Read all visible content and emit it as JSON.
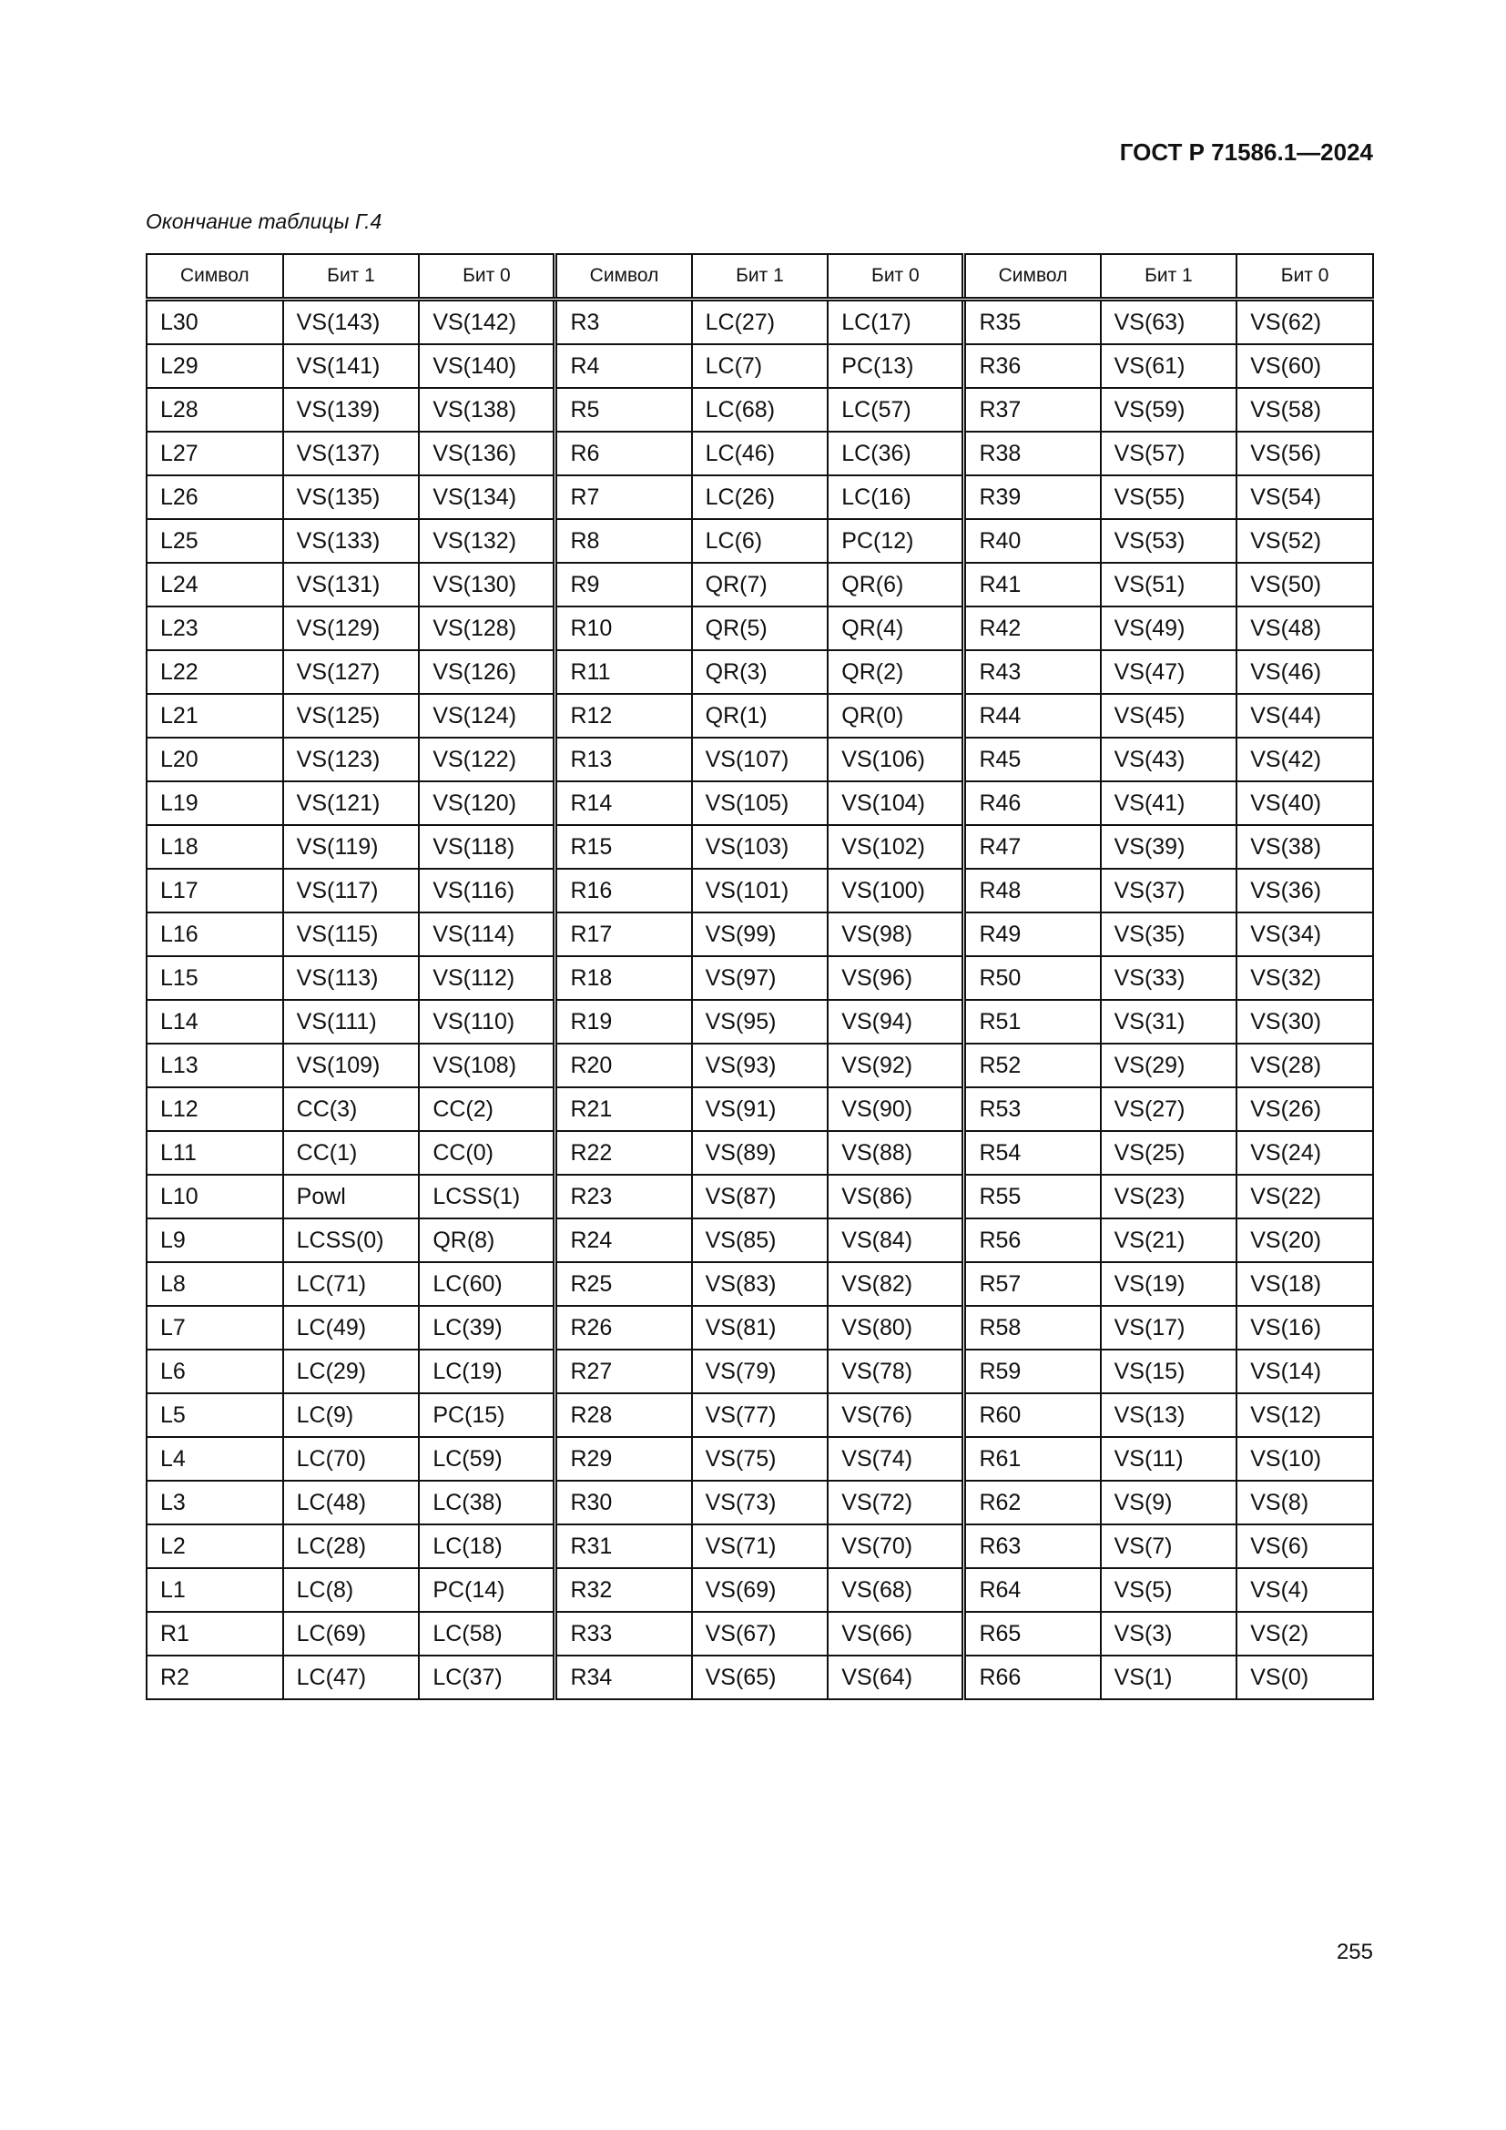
{
  "header": {
    "doc_code": "ГОСТ Р 71586.1—2024"
  },
  "caption": "Окончание таблицы Г.4",
  "table": {
    "columns": [
      "Символ",
      "Бит 1",
      "Бит 0",
      "Символ",
      "Бит 1",
      "Бит 0",
      "Символ",
      "Бит 1",
      "Бит 0"
    ],
    "rows": [
      [
        "L30",
        "VS(143)",
        "VS(142)",
        "R3",
        "LC(27)",
        "LC(17)",
        "R35",
        "VS(63)",
        "VS(62)"
      ],
      [
        "L29",
        "VS(141)",
        "VS(140)",
        "R4",
        "LC(7)",
        "PC(13)",
        "R36",
        "VS(61)",
        "VS(60)"
      ],
      [
        "L28",
        "VS(139)",
        "VS(138)",
        "R5",
        "LC(68)",
        "LC(57)",
        "R37",
        "VS(59)",
        "VS(58)"
      ],
      [
        "L27",
        "VS(137)",
        "VS(136)",
        "R6",
        "LC(46)",
        "LC(36)",
        "R38",
        "VS(57)",
        "VS(56)"
      ],
      [
        "L26",
        "VS(135)",
        "VS(134)",
        "R7",
        "LC(26)",
        "LC(16)",
        "R39",
        "VS(55)",
        "VS(54)"
      ],
      [
        "L25",
        "VS(133)",
        "VS(132)",
        "R8",
        "LC(6)",
        "PC(12)",
        "R40",
        "VS(53)",
        "VS(52)"
      ],
      [
        "L24",
        "VS(131)",
        "VS(130)",
        "R9",
        "QR(7)",
        "QR(6)",
        "R41",
        "VS(51)",
        "VS(50)"
      ],
      [
        "L23",
        "VS(129)",
        "VS(128)",
        "R10",
        "QR(5)",
        "QR(4)",
        "R42",
        "VS(49)",
        "VS(48)"
      ],
      [
        "L22",
        "VS(127)",
        "VS(126)",
        "R11",
        "QR(3)",
        "QR(2)",
        "R43",
        "VS(47)",
        "VS(46)"
      ],
      [
        "L21",
        "VS(125)",
        "VS(124)",
        "R12",
        "QR(1)",
        "QR(0)",
        "R44",
        "VS(45)",
        "VS(44)"
      ],
      [
        "L20",
        "VS(123)",
        "VS(122)",
        "R13",
        "VS(107)",
        "VS(106)",
        "R45",
        "VS(43)",
        "VS(42)"
      ],
      [
        "L19",
        "VS(121)",
        "VS(120)",
        "R14",
        "VS(105)",
        "VS(104)",
        "R46",
        "VS(41)",
        "VS(40)"
      ],
      [
        "L18",
        "VS(119)",
        "VS(118)",
        "R15",
        "VS(103)",
        "VS(102)",
        "R47",
        "VS(39)",
        "VS(38)"
      ],
      [
        "L17",
        "VS(117)",
        "VS(116)",
        "R16",
        "VS(101)",
        "VS(100)",
        "R48",
        "VS(37)",
        "VS(36)"
      ],
      [
        "L16",
        "VS(115)",
        "VS(114)",
        "R17",
        "VS(99)",
        "VS(98)",
        "R49",
        "VS(35)",
        "VS(34)"
      ],
      [
        "L15",
        "VS(113)",
        "VS(112)",
        "R18",
        "VS(97)",
        "VS(96)",
        "R50",
        "VS(33)",
        "VS(32)"
      ],
      [
        "L14",
        "VS(111)",
        "VS(110)",
        "R19",
        "VS(95)",
        "VS(94)",
        "R51",
        "VS(31)",
        "VS(30)"
      ],
      [
        "L13",
        "VS(109)",
        "VS(108)",
        "R20",
        "VS(93)",
        "VS(92)",
        "R52",
        "VS(29)",
        "VS(28)"
      ],
      [
        "L12",
        "CC(3)",
        "CC(2)",
        "R21",
        "VS(91)",
        "VS(90)",
        "R53",
        "VS(27)",
        "VS(26)"
      ],
      [
        "L11",
        "CC(1)",
        "CC(0)",
        "R22",
        "VS(89)",
        "VS(88)",
        "R54",
        "VS(25)",
        "VS(24)"
      ],
      [
        "L10",
        "Powl",
        "LCSS(1)",
        "R23",
        "VS(87)",
        "VS(86)",
        "R55",
        "VS(23)",
        "VS(22)"
      ],
      [
        "L9",
        "LCSS(0)",
        "QR(8)",
        "R24",
        "VS(85)",
        "VS(84)",
        "R56",
        "VS(21)",
        "VS(20)"
      ],
      [
        "L8",
        "LC(71)",
        "LC(60)",
        "R25",
        "VS(83)",
        "VS(82)",
        "R57",
        "VS(19)",
        "VS(18)"
      ],
      [
        "L7",
        "LC(49)",
        "LC(39)",
        "R26",
        "VS(81)",
        "VS(80)",
        "R58",
        "VS(17)",
        "VS(16)"
      ],
      [
        "L6",
        "LC(29)",
        "LC(19)",
        "R27",
        "VS(79)",
        "VS(78)",
        "R59",
        "VS(15)",
        "VS(14)"
      ],
      [
        "L5",
        "LC(9)",
        "PC(15)",
        "R28",
        "VS(77)",
        "VS(76)",
        "R60",
        "VS(13)",
        "VS(12)"
      ],
      [
        "L4",
        "LC(70)",
        "LC(59)",
        "R29",
        "VS(75)",
        "VS(74)",
        "R61",
        "VS(11)",
        "VS(10)"
      ],
      [
        "L3",
        "LC(48)",
        "LC(38)",
        "R30",
        "VS(73)",
        "VS(72)",
        "R62",
        "VS(9)",
        "VS(8)"
      ],
      [
        "L2",
        "LC(28)",
        "LC(18)",
        "R31",
        "VS(71)",
        "VS(70)",
        "R63",
        "VS(7)",
        "VS(6)"
      ],
      [
        "L1",
        "LC(8)",
        "PC(14)",
        "R32",
        "VS(69)",
        "VS(68)",
        "R64",
        "VS(5)",
        "VS(4)"
      ],
      [
        "R1",
        "LC(69)",
        "LC(58)",
        "R33",
        "VS(67)",
        "VS(66)",
        "R65",
        "VS(3)",
        "VS(2)"
      ],
      [
        "R2",
        "LC(47)",
        "LC(37)",
        "R34",
        "VS(65)",
        "VS(64)",
        "R66",
        "VS(1)",
        "VS(0)"
      ]
    ]
  },
  "page_number": "255"
}
